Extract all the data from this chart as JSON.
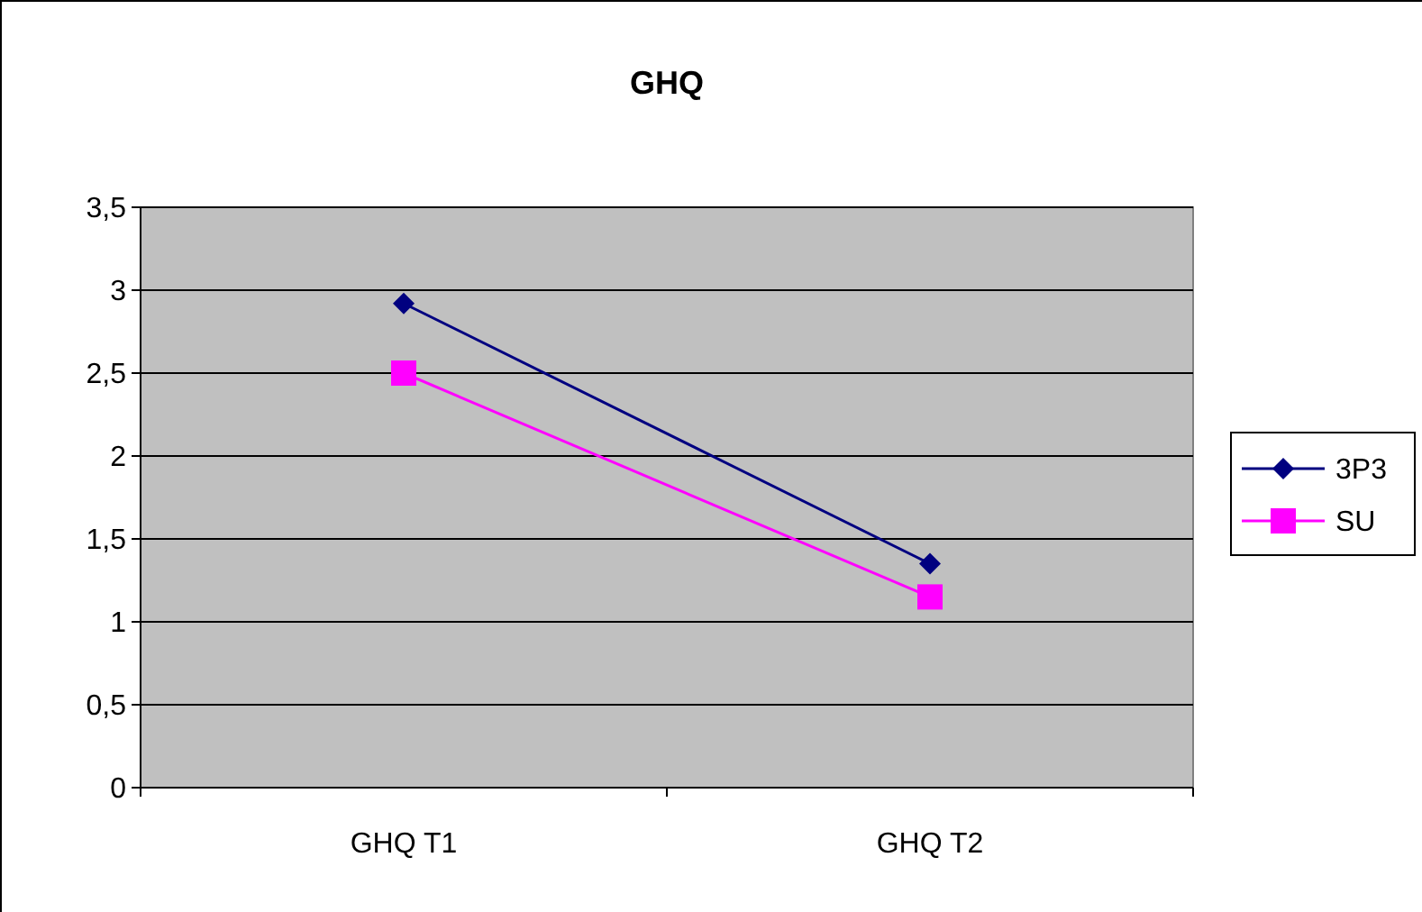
{
  "chart_data": {
    "type": "line",
    "title": "GHQ",
    "categories": [
      "GHQ T1",
      "GHQ T2"
    ],
    "series": [
      {
        "name": "3P3",
        "color": "#000080",
        "values": [
          2.92,
          1.35
        ],
        "marker": "diamond"
      },
      {
        "name": "SU",
        "color": "#ff00ff",
        "values": [
          2.5,
          1.15
        ],
        "marker": "square"
      }
    ],
    "ylim": [
      0,
      3.5
    ],
    "yticks": [
      0,
      {
        "value": 0.5,
        "label": "0,5"
      },
      1,
      {
        "value": 1.5,
        "label": "1,5"
      },
      2,
      {
        "value": 2.5,
        "label": "2,5"
      },
      3,
      {
        "value": 3.5,
        "label": "3,5"
      }
    ],
    "grid": "y",
    "legend": "right"
  }
}
